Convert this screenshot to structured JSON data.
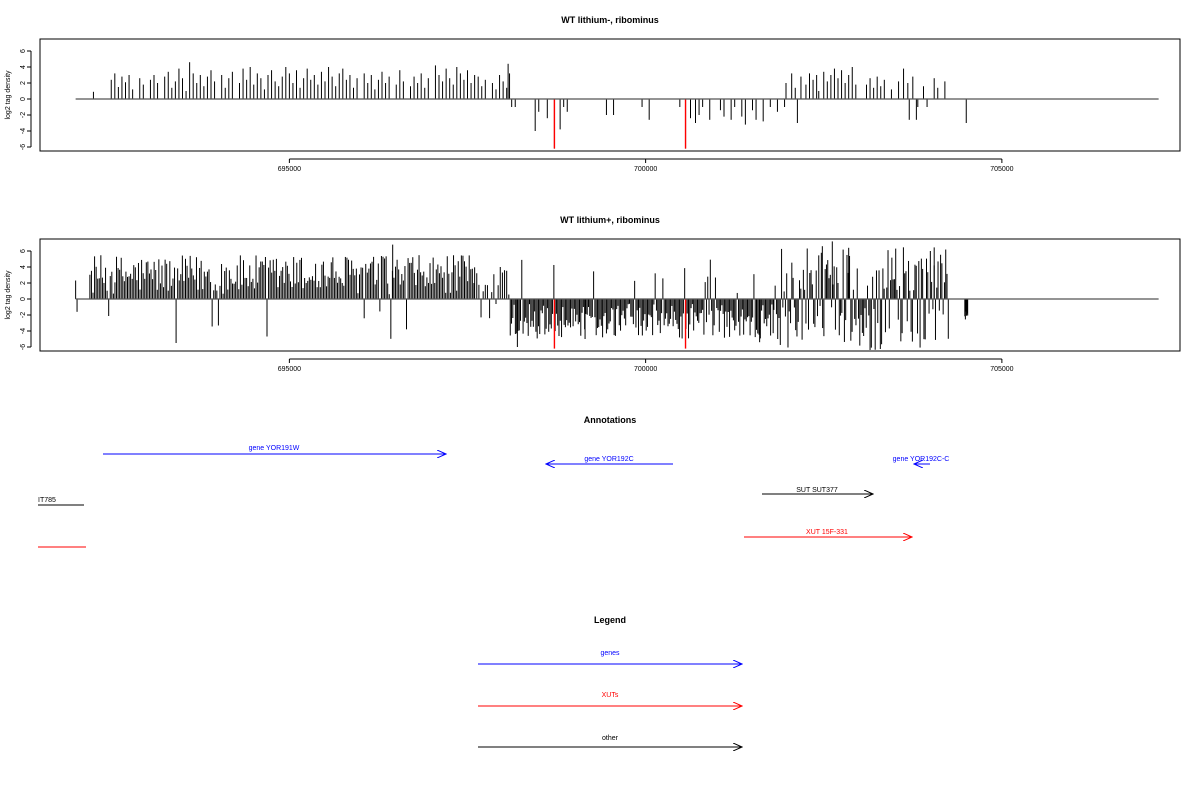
{
  "chart_data": [
    {
      "type": "bar",
      "title": "WT lithium-, ribominus",
      "xlabel": "",
      "ylabel": "log2 tag density",
      "xlim": [
        691500,
        707500
      ],
      "ylim": [
        -6.5,
        7.5
      ],
      "yticks": [
        6,
        4,
        2,
        0,
        -2,
        -4,
        -6
      ],
      "xticks": [
        695000,
        700000,
        705000
      ],
      "xtick_labels": [
        "695000",
        "700000",
        "705000"
      ],
      "baseline": [
        692000,
        707200
      ],
      "bar_color": "#000000",
      "highlight_color": "#ff0000",
      "series": [
        {
          "values": [
            [
              692250,
              0.9
            ],
            [
              692500,
              2.4
            ],
            [
              692550,
              3.2
            ],
            [
              692600,
              1.5
            ],
            [
              692650,
              2.8
            ],
            [
              692700,
              2.1
            ],
            [
              692750,
              3.0
            ],
            [
              692800,
              1.2
            ],
            [
              692900,
              2.6
            ],
            [
              692950,
              1.8
            ],
            [
              693050,
              2.4
            ],
            [
              693100,
              3.0
            ],
            [
              693150,
              2.0
            ],
            [
              693250,
              2.8
            ],
            [
              693300,
              3.4
            ],
            [
              693350,
              1.4
            ],
            [
              693400,
              2.2
            ],
            [
              693450,
              3.8
            ],
            [
              693500,
              2.6
            ],
            [
              693550,
              1.0
            ],
            [
              693600,
              4.6
            ],
            [
              693650,
              3.2
            ],
            [
              693700,
              2.0
            ],
            [
              693750,
              3.0
            ],
            [
              693800,
              1.6
            ],
            [
              693850,
              2.8
            ],
            [
              693900,
              3.6
            ],
            [
              693950,
              2.2
            ],
            [
              694050,
              3.0
            ],
            [
              694100,
              1.4
            ],
            [
              694150,
              2.6
            ],
            [
              694200,
              3.4
            ],
            [
              694300,
              2.0
            ],
            [
              694350,
              3.8
            ],
            [
              694400,
              2.4
            ],
            [
              694450,
              4.0
            ],
            [
              694500,
              1.8
            ],
            [
              694550,
              3.2
            ],
            [
              694600,
              2.6
            ],
            [
              694650,
              1.2
            ],
            [
              694700,
              3.0
            ],
            [
              694750,
              3.6
            ],
            [
              694800,
              2.2
            ],
            [
              694850,
              1.6
            ],
            [
              694900,
              2.8
            ],
            [
              694950,
              4.0
            ],
            [
              695000,
              3.2
            ],
            [
              695050,
              2.0
            ],
            [
              695100,
              3.6
            ],
            [
              695150,
              1.4
            ],
            [
              695200,
              2.6
            ],
            [
              695250,
              3.8
            ],
            [
              695300,
              2.4
            ],
            [
              695350,
              3.0
            ],
            [
              695400,
              1.8
            ],
            [
              695450,
              3.4
            ],
            [
              695500,
              2.2
            ],
            [
              695550,
              4.0
            ],
            [
              695600,
              2.8
            ],
            [
              695650,
              1.6
            ],
            [
              695700,
              3.2
            ],
            [
              695750,
              3.8
            ],
            [
              695800,
              2.4
            ],
            [
              695850,
              3.0
            ],
            [
              695900,
              1.4
            ],
            [
              695950,
              2.6
            ],
            [
              696050,
              3.2
            ],
            [
              696100,
              2.0
            ],
            [
              696150,
              3.0
            ],
            [
              696200,
              1.2
            ],
            [
              696250,
              2.4
            ],
            [
              696300,
              3.4
            ],
            [
              696350,
              2.0
            ],
            [
              696400,
              2.8
            ],
            [
              696500,
              1.8
            ],
            [
              696550,
              3.6
            ],
            [
              696600,
              2.2
            ],
            [
              696700,
              1.6
            ],
            [
              696750,
              2.8
            ],
            [
              696800,
              2.0
            ],
            [
              696850,
              3.2
            ],
            [
              696900,
              1.4
            ],
            [
              696950,
              2.6
            ],
            [
              697050,
              4.2
            ],
            [
              697100,
              3.0
            ],
            [
              697150,
              2.2
            ],
            [
              697200,
              3.8
            ],
            [
              697250,
              2.6
            ],
            [
              697300,
              1.8
            ],
            [
              697350,
              4.0
            ],
            [
              697400,
              3.2
            ],
            [
              697450,
              2.4
            ],
            [
              697500,
              3.6
            ],
            [
              697550,
              2.0
            ],
            [
              697600,
              3.0
            ],
            [
              697650,
              2.8
            ],
            [
              697700,
              1.6
            ],
            [
              697750,
              2.4
            ],
            [
              697850,
              2.0
            ],
            [
              697900,
              1.2
            ],
            [
              697950,
              3.0
            ],
            [
              698000,
              2.2
            ],
            [
              698050,
              1.4
            ],
            [
              698070,
              4.4
            ],
            [
              698090,
              3.2
            ],
            [
              698120,
              -1.0
            ],
            [
              698170,
              -1.0
            ],
            [
              698450,
              -4.0
            ],
            [
              698500,
              -1.6
            ],
            [
              698620,
              -2.4
            ],
            [
              698720,
              -6.2
            ],
            [
              698800,
              -3.8
            ],
            [
              698850,
              -1.0
            ],
            [
              698900,
              -1.6
            ],
            [
              699450,
              -2.0
            ],
            [
              699550,
              -2.0
            ],
            [
              699950,
              -1.0
            ],
            [
              700050,
              -2.6
            ],
            [
              700480,
              -1.0
            ],
            [
              700560,
              -6.2
            ],
            [
              700630,
              -2.4
            ],
            [
              700700,
              -3.0
            ],
            [
              700750,
              -2.0
            ],
            [
              700800,
              -1.0
            ],
            [
              700900,
              -2.6
            ],
            [
              701050,
              -1.4
            ],
            [
              701100,
              -2.2
            ],
            [
              701200,
              -2.6
            ],
            [
              701250,
              -1.0
            ],
            [
              701350,
              -2.2
            ],
            [
              701400,
              -3.2
            ],
            [
              701500,
              -1.4
            ],
            [
              701550,
              -2.6
            ],
            [
              701650,
              -2.8
            ],
            [
              701750,
              -1.0
            ],
            [
              701850,
              -1.6
            ],
            [
              701950,
              -1.0
            ],
            [
              701970,
              2.0
            ],
            [
              702050,
              3.2
            ],
            [
              702100,
              1.4
            ],
            [
              702130,
              -3.0
            ],
            [
              702180,
              2.8
            ],
            [
              702250,
              1.8
            ],
            [
              702300,
              3.2
            ],
            [
              702350,
              2.4
            ],
            [
              702400,
              3.0
            ],
            [
              702430,
              1.0
            ],
            [
              702500,
              3.4
            ],
            [
              702550,
              2.2
            ],
            [
              702600,
              3.0
            ],
            [
              702650,
              3.8
            ],
            [
              702700,
              2.6
            ],
            [
              702750,
              3.6
            ],
            [
              702800,
              2.0
            ],
            [
              702850,
              3.0
            ],
            [
              702900,
              4.0
            ],
            [
              702950,
              1.8
            ],
            [
              703100,
              1.8
            ],
            [
              703150,
              2.6
            ],
            [
              703200,
              1.4
            ],
            [
              703250,
              2.8
            ],
            [
              703300,
              1.6
            ],
            [
              703350,
              2.4
            ],
            [
              703450,
              1.2
            ],
            [
              703550,
              2.2
            ],
            [
              703620,
              3.8
            ],
            [
              703680,
              2.0
            ],
            [
              703700,
              -2.6
            ],
            [
              703750,
              2.8
            ],
            [
              703800,
              -2.6
            ],
            [
              703820,
              -1.0
            ],
            [
              703900,
              1.6
            ],
            [
              703950,
              -1.0
            ],
            [
              704050,
              2.6
            ],
            [
              704100,
              1.4
            ],
            [
              704200,
              2.2
            ],
            [
              704500,
              -3.0
            ]
          ]
        }
      ],
      "highlights": [
        [
          698720,
          -6.2
        ],
        [
          700560,
          -6.2
        ]
      ]
    },
    {
      "type": "bar",
      "title": "WT lithium+, ribominus",
      "xlabel": "",
      "ylabel": "log2 tag density",
      "xlim": [
        691500,
        707500
      ],
      "ylim": [
        -6.5,
        7.5
      ],
      "yticks": [
        6,
        4,
        2,
        0,
        -2,
        -4,
        -6
      ],
      "xticks": [
        695000,
        700000,
        705000
      ],
      "xtick_labels": [
        "695000",
        "700000",
        "705000"
      ],
      "baseline": [
        692000,
        707200
      ],
      "bar_color": "#000000",
      "highlight_color": "#ff0000",
      "segments": [
        {
          "start": 692000,
          "end": 692020,
          "step": 10,
          "min": -2.4,
          "max": 2.0,
          "sign": 1,
          "neg_prob": 0.6
        },
        {
          "start": 692200,
          "end": 697600,
          "step": 22,
          "min": 0.6,
          "max": 5.5,
          "sign": 1,
          "neg_prob": 0.02
        },
        {
          "start": 697600,
          "end": 698100,
          "step": 30,
          "min": 0.5,
          "max": 4.5,
          "sign": 1,
          "neg_prob": 0.3
        },
        {
          "start": 698100,
          "end": 701800,
          "step": 18,
          "min": 0.6,
          "max": 5.0,
          "sign": -1,
          "neg_prob": 0.06
        },
        {
          "start": 701800,
          "end": 704250,
          "step": 18,
          "min": 0.8,
          "max": 6.5,
          "sign": 1,
          "neg_prob": 0.4
        },
        {
          "start": 704480,
          "end": 704520,
          "step": 8,
          "min": 1.5,
          "max": 3.5,
          "sign": -1,
          "neg_prob": 0.0
        }
      ],
      "spikes": [
        [
          696450,
          6.8
        ],
        [
          702620,
          7.2
        ],
        [
          702480,
          6.6
        ],
        [
          702850,
          6.4
        ],
        [
          704050,
          4.2
        ],
        [
          698200,
          -6.0
        ],
        [
          699150,
          -5.0
        ],
        [
          701600,
          -5.4
        ]
      ],
      "highlights": [
        [
          698720,
          -6.2
        ],
        [
          700560,
          -6.2
        ]
      ]
    }
  ],
  "annotations": {
    "title": "Annotations",
    "xlim": [
      691500,
      707500
    ],
    "features": [
      {
        "label": "gene YOR191W",
        "start": 692300,
        "end": 697200,
        "direction": "forward",
        "color": "#0000ff",
        "row": "genes"
      },
      {
        "label": "gene YOR192C",
        "start": 698700,
        "end": 700600,
        "direction": "reverse",
        "color": "#0000ff",
        "row": "genes2"
      },
      {
        "label": "gene YOR192C-C",
        "start": 703900,
        "end": 704150,
        "direction": "reverse",
        "color": "#0000ff",
        "row": "genes2"
      },
      {
        "label": "IT785",
        "start": 691500,
        "end": 692150,
        "direction": "none",
        "color": "#000000",
        "row": "other"
      },
      {
        "label": "SUT SUT377",
        "start": 701950,
        "end": 703550,
        "direction": "forward",
        "color": "#000000",
        "row": "other"
      },
      {
        "label": "",
        "start": 691500,
        "end": 692170,
        "direction": "none",
        "color": "#ff0000",
        "row": "xuts"
      },
      {
        "label": "XUT 15F-331",
        "start": 701700,
        "end": 704100,
        "direction": "forward",
        "color": "#ff0000",
        "row": "xuts"
      }
    ]
  },
  "legend": {
    "title": "Legend",
    "items": [
      {
        "label": "genes",
        "color": "#0000ff"
      },
      {
        "label": "XUTs",
        "color": "#ff0000"
      },
      {
        "label": "other",
        "color": "#000000"
      }
    ]
  }
}
